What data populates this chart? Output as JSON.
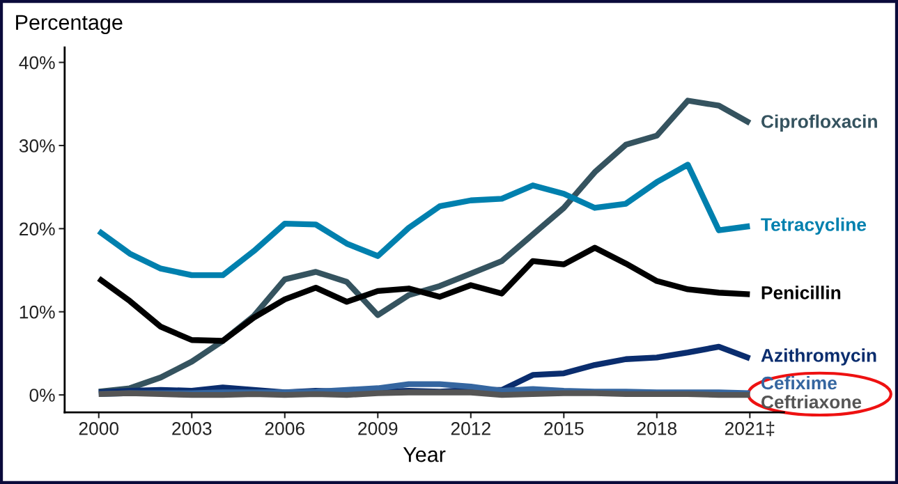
{
  "chart_data": {
    "type": "line",
    "ylabel": "Percentage",
    "xlabel": "Year",
    "x": [
      2000,
      2001,
      2002,
      2003,
      2004,
      2005,
      2006,
      2007,
      2008,
      2009,
      2010,
      2011,
      2012,
      2013,
      2014,
      2015,
      2016,
      2017,
      2018,
      2019,
      2020,
      2021
    ],
    "series": [
      {
        "name": "Ciprofloxacin",
        "color": "#35535f",
        "values": [
          0.4,
          0.8,
          2.1,
          4.0,
          6.5,
          9.5,
          13.9,
          14.8,
          13.6,
          9.6,
          12.0,
          13.1,
          14.6,
          16.1,
          19.3,
          22.5,
          26.8,
          30.1,
          31.2,
          35.4,
          34.8,
          32.7
        ]
      },
      {
        "name": "Tetracycline",
        "color": "#0080ae",
        "values": [
          19.7,
          17.0,
          15.2,
          14.4,
          14.4,
          17.3,
          20.6,
          20.5,
          18.2,
          16.7,
          20.1,
          22.7,
          23.4,
          23.6,
          25.2,
          24.2,
          22.5,
          23.0,
          25.6,
          27.7,
          19.8,
          20.3
        ]
      },
      {
        "name": "Penicillin",
        "color": "#000000",
        "values": [
          14.0,
          11.3,
          8.2,
          6.6,
          6.5,
          9.3,
          11.5,
          12.9,
          11.2,
          12.5,
          12.8,
          11.8,
          13.2,
          12.2,
          16.1,
          15.7,
          17.7,
          15.8,
          13.7,
          12.7,
          12.3,
          12.1
        ]
      },
      {
        "name": "Azithromycin",
        "color": "#0a2d6e",
        "values": [
          0.3,
          0.5,
          0.6,
          0.5,
          0.9,
          0.6,
          0.3,
          0.5,
          0.4,
          0.4,
          0.5,
          0.4,
          0.6,
          0.6,
          2.4,
          2.6,
          3.6,
          4.3,
          4.5,
          5.1,
          5.8,
          4.4
        ]
      },
      {
        "name": "Cefixime",
        "color": "#3566a0",
        "values": [
          0.1,
          0.2,
          0.2,
          0.2,
          0.3,
          0.3,
          0.3,
          0.4,
          0.6,
          0.8,
          1.3,
          1.3,
          1.0,
          0.5,
          0.7,
          0.5,
          0.4,
          0.4,
          0.3,
          0.3,
          0.3,
          0.2
        ]
      },
      {
        "name": "Ceftriaxone",
        "color": "#555555",
        "values": [
          0.1,
          0.2,
          0.1,
          0.0,
          0.0,
          0.1,
          0.0,
          0.1,
          0.0,
          0.2,
          0.3,
          0.3,
          0.3,
          0.0,
          0.1,
          0.2,
          0.2,
          0.1,
          0.1,
          0.1,
          0.0,
          0.0
        ]
      }
    ],
    "xlim": [
      1998.9,
      2022.1
    ],
    "xticks": [
      2000,
      2003,
      2006,
      2009,
      2012,
      2015,
      2018,
      {
        "value": 2021,
        "label": "2021‡"
      }
    ],
    "ylim": [
      -2.1,
      41.8
    ],
    "yticks": [
      {
        "value": 0,
        "label": "0%"
      },
      {
        "value": 10,
        "label": "10%"
      },
      {
        "value": 20,
        "label": "20%"
      },
      {
        "value": 30,
        "label": "30%"
      },
      {
        "value": 40,
        "label": "40%"
      }
    ],
    "grid": false,
    "legend": false,
    "marker": "none",
    "line_style": "solid"
  }
}
